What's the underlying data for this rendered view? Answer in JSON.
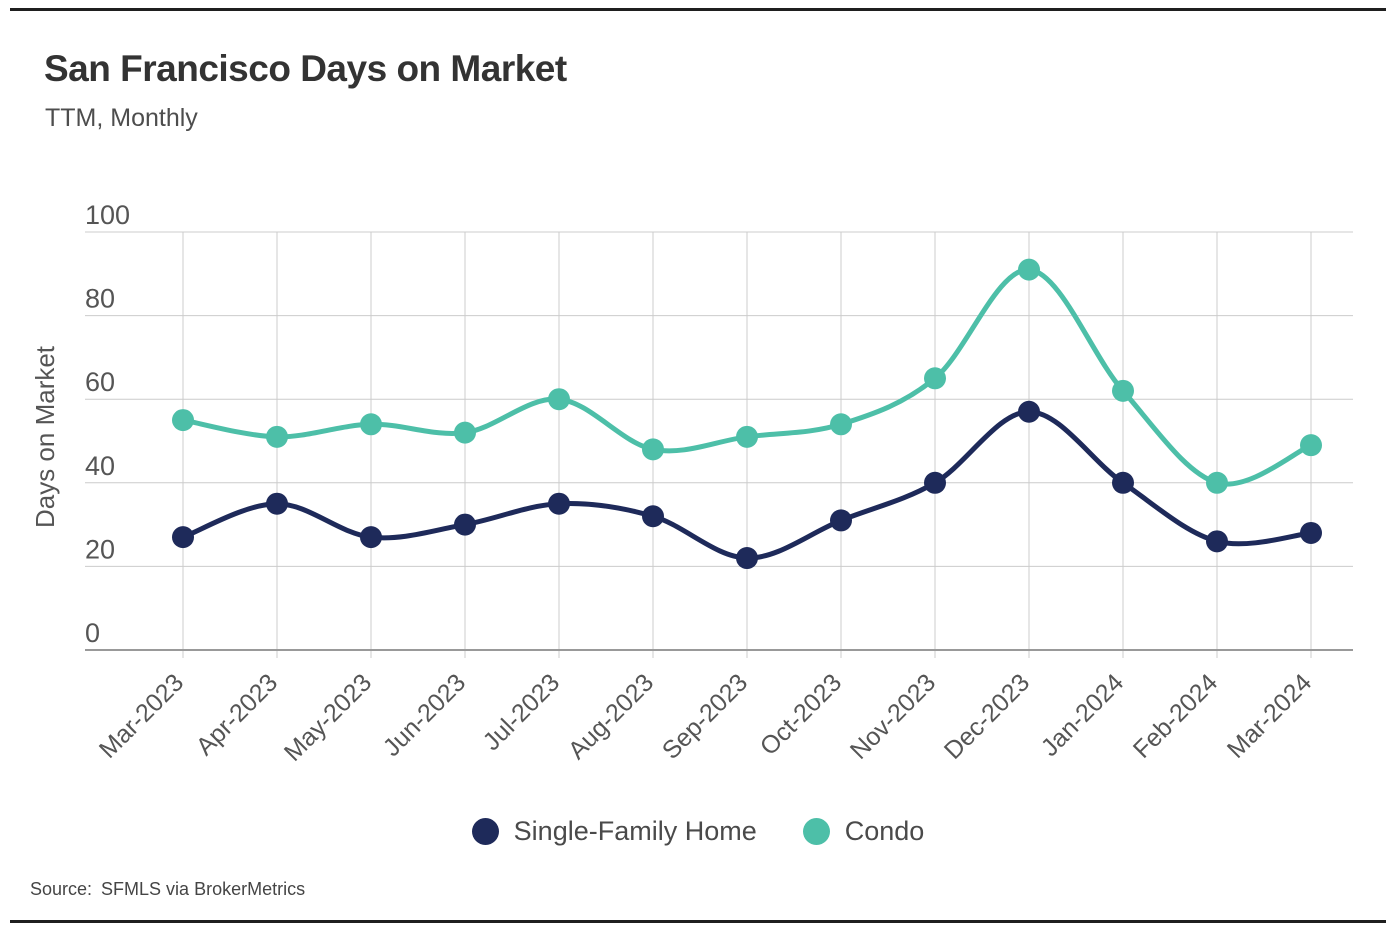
{
  "header": {
    "title": "San Francisco Days on Market",
    "subtitle": "TTM, Monthly"
  },
  "footer": {
    "source_label": "Source:",
    "source_value": "SFMLS via BrokerMetrics"
  },
  "colors": {
    "single_family": "#1e2a5a",
    "condo": "#4dbfa8",
    "gridline": "#cccccc",
    "axis_line": "#999999",
    "tick_text": "#555555",
    "title_text": "#333333",
    "rule": "#1f1f1f"
  },
  "chart_data": {
    "type": "line",
    "title": "San Francisco Days on Market",
    "subtitle": "TTM, Monthly",
    "xlabel": "",
    "ylabel": "Days on Market",
    "ylim": [
      0,
      100
    ],
    "yticks": [
      0,
      20,
      40,
      60,
      80,
      100
    ],
    "grid": true,
    "legend_position": "bottom",
    "x_tick_rotation": -45,
    "point_markers": true,
    "smooth": true,
    "categories": [
      "Mar-2023",
      "Apr-2023",
      "May-2023",
      "Jun-2023",
      "Jul-2023",
      "Aug-2023",
      "Sep-2023",
      "Oct-2023",
      "Nov-2023",
      "Dec-2023",
      "Jan-2024",
      "Feb-2024",
      "Mar-2024"
    ],
    "series": [
      {
        "name": "Single-Family Home",
        "color": "#1e2a5a",
        "values": [
          27,
          35,
          27,
          30,
          35,
          32,
          22,
          31,
          40,
          57,
          40,
          26,
          28
        ]
      },
      {
        "name": "Condo",
        "color": "#4dbfa8",
        "values": [
          55,
          51,
          54,
          52,
          60,
          48,
          51,
          54,
          65,
          91,
          62,
          40,
          49
        ]
      }
    ]
  }
}
